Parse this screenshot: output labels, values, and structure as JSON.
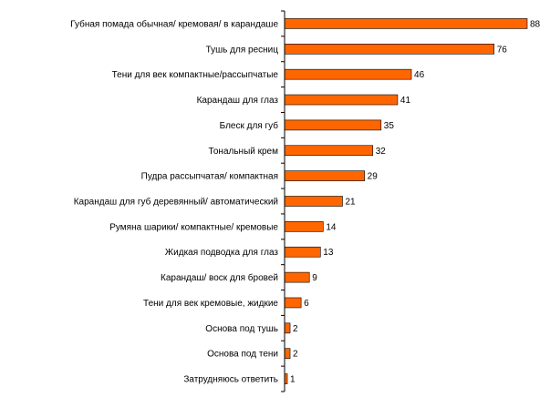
{
  "chart_data": {
    "type": "bar",
    "orientation": "horizontal",
    "title": "",
    "xlabel": "",
    "ylabel": "",
    "categories": [
      "Губная помада обычная/ кремовая/ в карандаше",
      "Тушь для ресниц",
      "Тени для век компактные/рассыпчатые",
      "Карандаш для глаз",
      "Блеск для губ",
      "Тональный крем",
      "Пудра рассыпчатая/ компактная",
      "Карандаш для губ деревянный/ автоматический",
      "Румяна шарики/ компактные/ кремовые",
      "Жидкая подводка для глаз",
      "Карандаш/ воск для бровей",
      "Тени для век кремовые, жидкие",
      "Основа под тушь",
      "Основа под тени",
      "Затрудняюсь ответить"
    ],
    "values": [
      88,
      76,
      46,
      41,
      35,
      32,
      29,
      21,
      14,
      13,
      9,
      6,
      2,
      2,
      1
    ],
    "xlim": [
      0,
      88
    ],
    "grid": false,
    "legend": "none",
    "bar_color": "#ff6600"
  }
}
